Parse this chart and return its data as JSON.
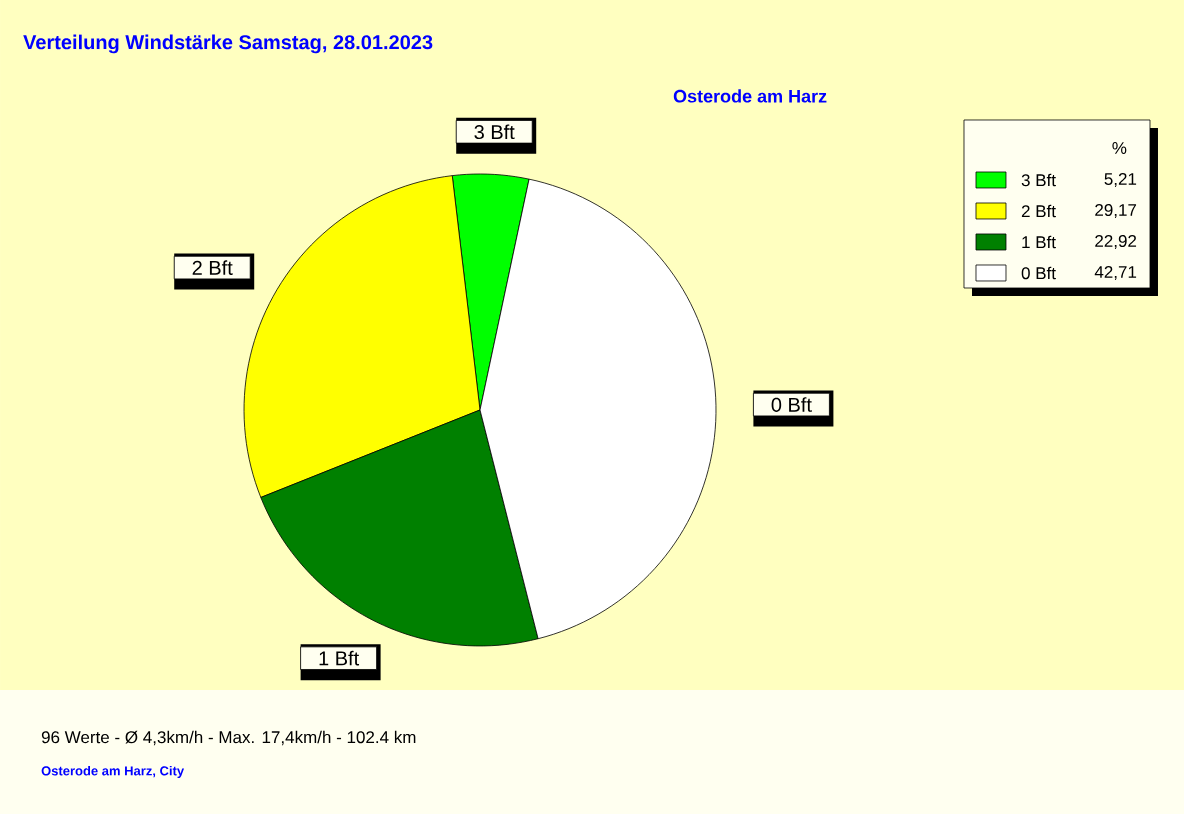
{
  "chart_data": {
    "type": "pie",
    "title": "Verteilung Windstärke  Samstag, 28.01.2023",
    "subtitle": "Osterode am Harz",
    "categories": [
      "3 Bft",
      "2 Bft",
      "1 Bft",
      "0 Bft"
    ],
    "values": [
      5.21,
      29.17,
      22.92,
      42.71
    ],
    "value_labels": [
      "5,21",
      "29,17",
      "22,92",
      "42,71"
    ],
    "colors": [
      "#00ff00",
      "#ffff00",
      "#008000",
      "#ffffff"
    ],
    "legend_title": "%",
    "legend": "top right",
    "annotations": [
      "96 Werte   -   Ø 4,3km/h  -  Max. 17,4km/h   -   102.4 km",
      "Osterode am Harz, City"
    ]
  }
}
